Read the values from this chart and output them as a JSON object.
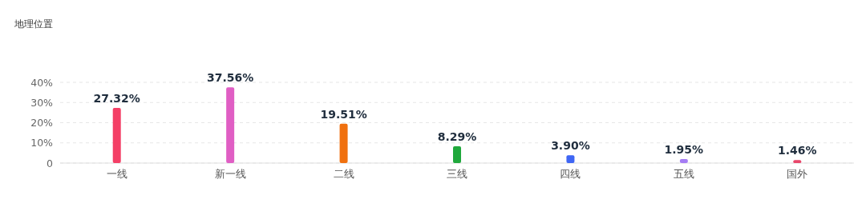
{
  "chart_data": {
    "type": "bar",
    "title": "地理位置",
    "categories": [
      "一线",
      "新一线",
      "二线",
      "三线",
      "四线",
      "五线",
      "国外"
    ],
    "values": [
      27.32,
      37.56,
      19.51,
      8.29,
      3.9,
      1.95,
      1.46
    ],
    "value_labels": [
      "27.32%",
      "37.56%",
      "19.51%",
      "8.29%",
      "3.90%",
      "1.95%",
      "1.46%"
    ],
    "colors": [
      "#f43f66",
      "#e05ec4",
      "#f0700e",
      "#1fa83c",
      "#3f66f4",
      "#a57cf4",
      "#e8466a"
    ],
    "ylim": [
      0,
      40
    ],
    "yticks": [
      0,
      {
        "value": 10,
        "label": "10%"
      },
      {
        "value": 20,
        "label": "20%"
      },
      {
        "value": 30,
        "label": "30%"
      },
      {
        "value": 40,
        "label": "40%"
      }
    ],
    "grid": "y"
  }
}
